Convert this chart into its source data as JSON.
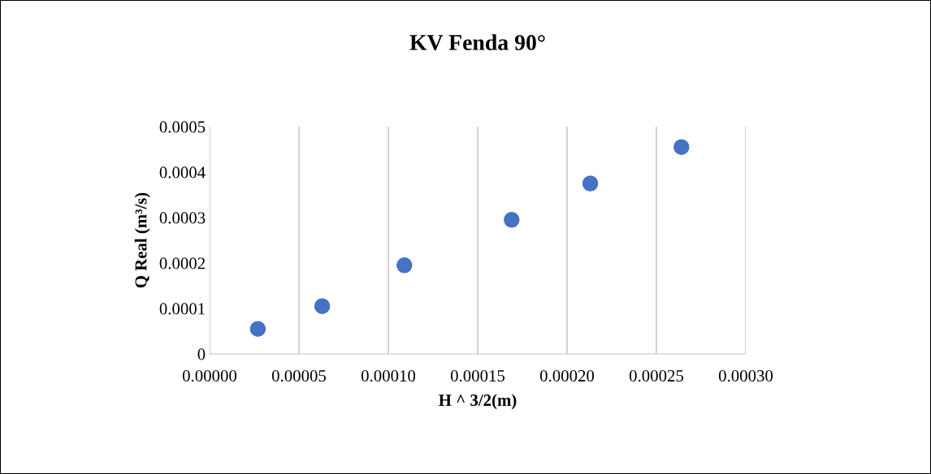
{
  "chart_data": {
    "type": "scatter",
    "title": "KV Fenda 90°",
    "xlabel": "H ^ 3/2(m)",
    "ylabel": "Q Real (m³/s)",
    "x": [
      2.7e-05,
      6.3e-05,
      0.000109,
      0.000169,
      0.000213,
      0.000264
    ],
    "series": [
      {
        "color": "#4472c4",
        "values": [
          5.5e-05,
          0.000105,
          0.000195,
          0.000295,
          0.000375,
          0.000455
        ]
      }
    ],
    "xlim": [
      0,
      0.0003
    ],
    "xticks": [
      {
        "value": 0,
        "label": "0.00000"
      },
      {
        "value": 5e-05,
        "label": "0.00005"
      },
      {
        "value": 0.0001,
        "label": "0.00010"
      },
      {
        "value": 0.00015,
        "label": "0.00015"
      },
      {
        "value": 0.0002,
        "label": "0.00020"
      },
      {
        "value": 0.00025,
        "label": "0.00025"
      },
      {
        "value": 0.0003,
        "label": "0.00030"
      }
    ],
    "ylim": [
      0,
      0.0005
    ],
    "yticks": [
      0,
      0.0001,
      0.0002,
      0.0003,
      0.0004,
      0.0005
    ],
    "grid": "x",
    "marker": "circle"
  }
}
